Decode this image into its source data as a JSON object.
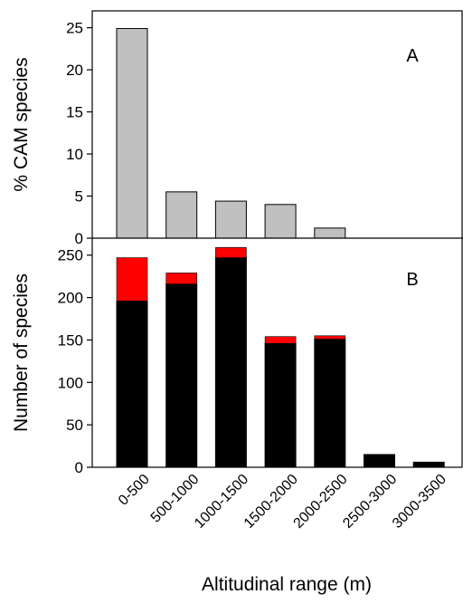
{
  "chart_data": [
    {
      "type": "bar",
      "panel_label": "A",
      "ylabel": "% CAM species",
      "ylim": [
        0,
        27
      ],
      "yticks": [
        0,
        5,
        10,
        15,
        20,
        25
      ],
      "categories": [
        "0-500",
        "500-1000",
        "1000-1500",
        "1500-2000",
        "2000-2500",
        "2500-3000",
        "3000-3500"
      ],
      "values": [
        24.9,
        5.5,
        4.4,
        4.0,
        1.2,
        0,
        0
      ],
      "colors": {
        "bar": "#c0c0c0"
      }
    },
    {
      "type": "bar",
      "stacked": true,
      "panel_label": "B",
      "ylabel": "Number of species",
      "ylim": [
        0,
        270
      ],
      "yticks": [
        0,
        50,
        100,
        150,
        200,
        250
      ],
      "categories": [
        "0-500",
        "500-1000",
        "1000-1500",
        "1500-2000",
        "2000-2500",
        "2500-3000",
        "3000-3500"
      ],
      "series": [
        {
          "color": "#000000",
          "values": [
            196,
            216,
            247,
            146,
            151,
            15,
            6
          ]
        },
        {
          "color": "#ff0000",
          "values": [
            51,
            13,
            12,
            8,
            4,
            0,
            0
          ]
        }
      ],
      "xlabel": "Altitudinal range (m)"
    }
  ]
}
